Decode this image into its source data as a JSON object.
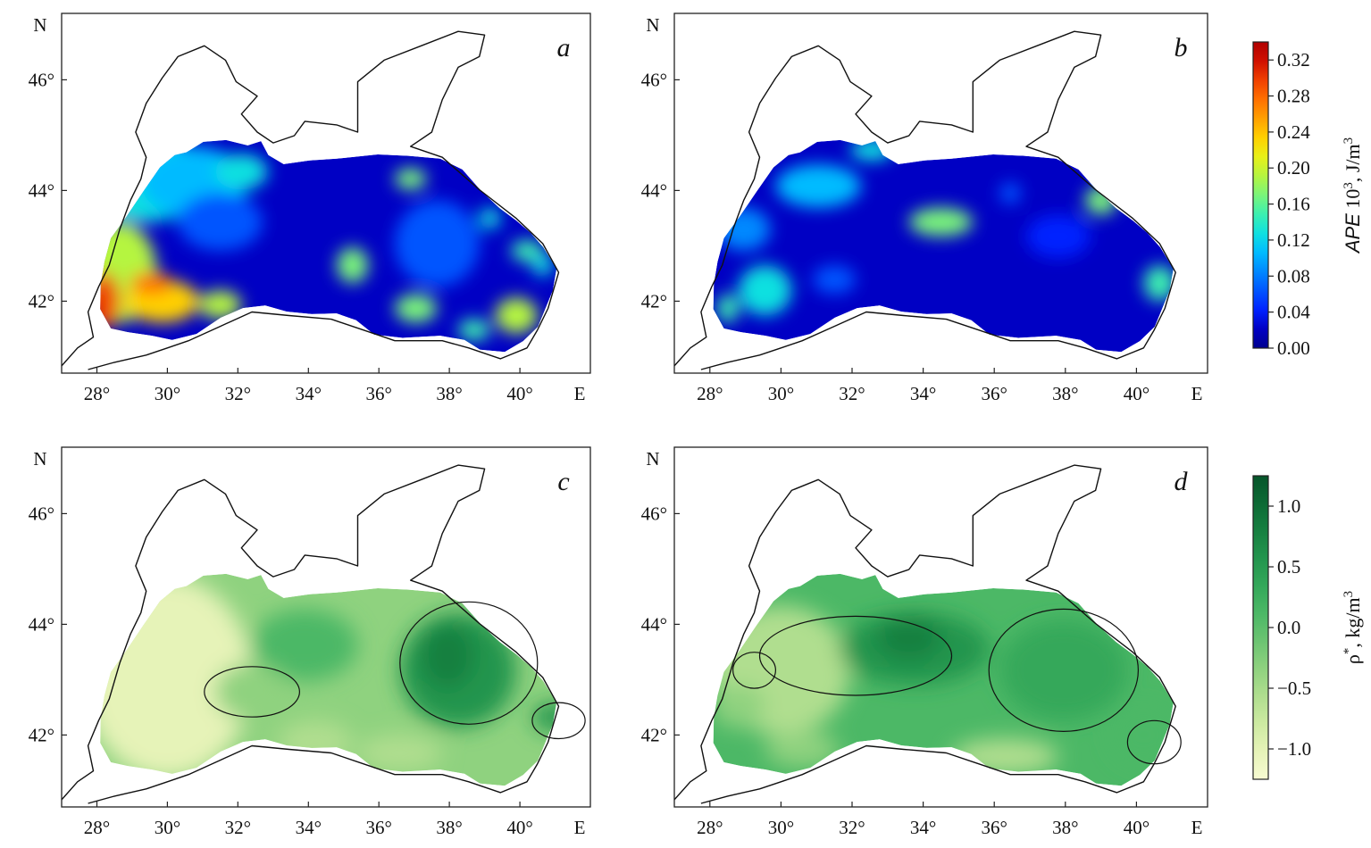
{
  "figure": {
    "x_axis": {
      "ticks": [
        "28°",
        "30°",
        "32°",
        "34°",
        "36°",
        "38°",
        "40°"
      ],
      "tick_values": [
        28,
        30,
        32,
        34,
        36,
        38,
        40
      ],
      "end_label": "E",
      "range": [
        27,
        42
      ]
    },
    "y_axis": {
      "ticks": [
        "46°",
        "44°",
        "42°"
      ],
      "tick_values": [
        46,
        44,
        42
      ],
      "end_label": "N",
      "range": [
        40.7,
        47.2
      ]
    },
    "panels": [
      {
        "letter": "a",
        "field": "ape"
      },
      {
        "letter": "b",
        "field": "ape"
      },
      {
        "letter": "c",
        "field": "density"
      },
      {
        "letter": "d",
        "field": "density"
      }
    ],
    "colorbar_ape": {
      "label_italic": "APE",
      "label_rest": " 10",
      "label_sup": "3",
      "label_unit": ", J/m",
      "label_unit_sup": "3",
      "ticks": [
        "0.32",
        "0.28",
        "0.24",
        "0.20",
        "0.16",
        "0.12",
        "0.08",
        "0.04",
        "0.00"
      ],
      "tick_values": [
        0.32,
        0.28,
        0.24,
        0.2,
        0.16,
        0.12,
        0.08,
        0.04,
        0.0
      ],
      "range": [
        0,
        0.34
      ],
      "colors": [
        "#00008f",
        "#0000c4",
        "#0022ff",
        "#0055ff",
        "#0088ff",
        "#00bbff",
        "#10e0e0",
        "#3cf0b0",
        "#7af57a",
        "#b5f540",
        "#e8f018",
        "#ffd000",
        "#ffa000",
        "#ff7000",
        "#f04000",
        "#d01000",
        "#b00000"
      ]
    },
    "colorbar_rho": {
      "label_symbol": "ρ",
      "label_sup": "*",
      "label_unit": ", kg/m",
      "label_unit_sup": "3",
      "ticks": [
        "1.0",
        "0.5",
        "0.0",
        "−0.5",
        "−1.0"
      ],
      "tick_values": [
        1.0,
        0.5,
        0.0,
        -0.5,
        -1.0
      ],
      "range": [
        -1.25,
        1.25
      ],
      "colors": [
        "#f7fbd2",
        "#e6f3b8",
        "#cdeaa2",
        "#b0de8f",
        "#8fd27f",
        "#6cc472",
        "#4cb866",
        "#34a85a",
        "#23954e",
        "#178041",
        "#0d6a35",
        "#06552a"
      ]
    }
  }
}
